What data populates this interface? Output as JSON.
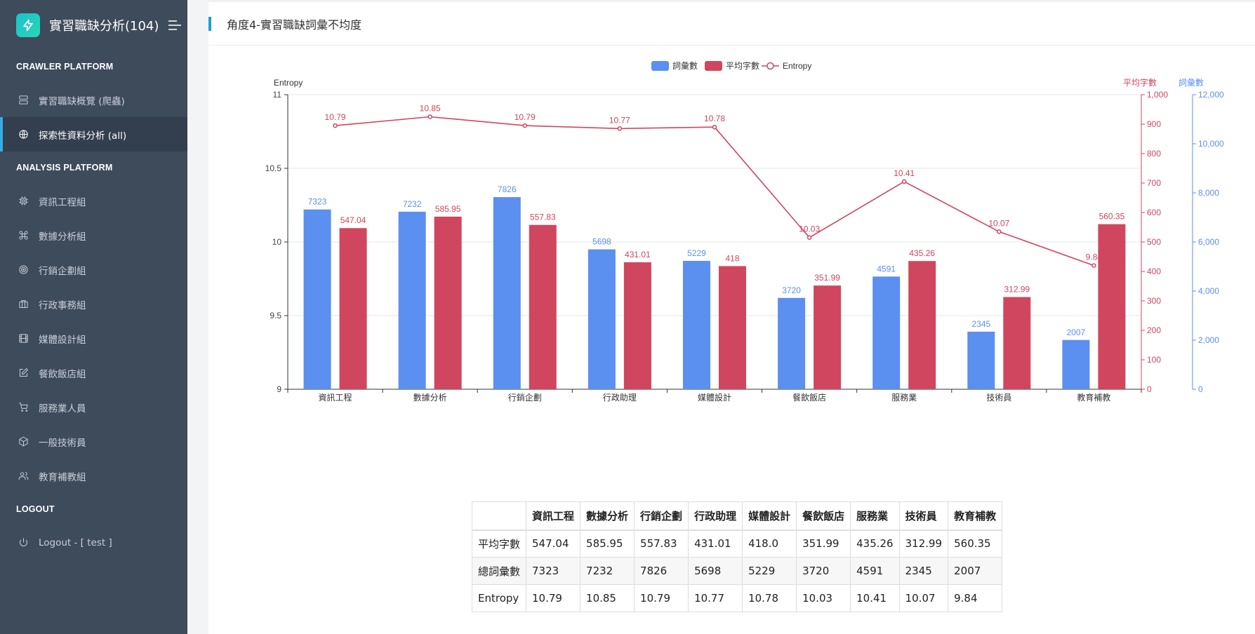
{
  "brand": {
    "title": "實習職缺分析(104)",
    "logo_icon": "bolt-icon",
    "menu_icon": "hamburger-icon"
  },
  "sidebar": {
    "sections": [
      {
        "title": "CRAWLER PLATFORM",
        "items": [
          {
            "label": "實習職缺概覽 (爬蟲)",
            "icon": "server-icon"
          },
          {
            "label": "探索性資料分析 (all)",
            "icon": "globe-icon",
            "active": true
          }
        ]
      },
      {
        "title": "ANALYSIS PLATFORM",
        "items": [
          {
            "label": "資訊工程組",
            "icon": "cpu-icon"
          },
          {
            "label": "數據分析組",
            "icon": "command-icon"
          },
          {
            "label": "行銷企劃組",
            "icon": "target-icon"
          },
          {
            "label": "行政事務組",
            "icon": "briefcase-icon"
          },
          {
            "label": "媒體設計組",
            "icon": "film-icon"
          },
          {
            "label": "餐飲飯店組",
            "icon": "edit-icon"
          },
          {
            "label": "服務業人員",
            "icon": "cart-icon"
          },
          {
            "label": "一般技術員",
            "icon": "codesandbox-icon"
          },
          {
            "label": "教育補教組",
            "icon": "users-icon"
          }
        ]
      },
      {
        "title": "LOGOUT",
        "items": [
          {
            "label": "Logout - [ test ]",
            "icon": "power-icon"
          }
        ]
      }
    ]
  },
  "page": {
    "title": "角度4-實習職缺詞彙不均度"
  },
  "colors": {
    "blue": "#5b8ff0",
    "red": "#d0465e",
    "accent": "#1e9fd8",
    "sidebar_bg": "#3e4b5b"
  },
  "chart_data": {
    "type": "bar",
    "categories": [
      "資訊工程",
      "數據分析",
      "行銷企劃",
      "行政助理",
      "媒體設計",
      "餐飲飯店",
      "服務業",
      "技術員",
      "教育補教"
    ],
    "legend": [
      "詞彙數",
      "平均字數",
      "Entropy"
    ],
    "legend_position": "top-center",
    "series": [
      {
        "name": "詞彙數",
        "type": "bar",
        "axis": "right-outer",
        "values": [
          7323,
          7232,
          7826,
          5698,
          5229,
          3720,
          4591,
          2345,
          2007
        ]
      },
      {
        "name": "平均字數",
        "type": "bar",
        "axis": "right-inner",
        "values": [
          547.04,
          585.95,
          557.83,
          431.01,
          418,
          351.99,
          435.26,
          312.99,
          560.35
        ]
      },
      {
        "name": "Entropy",
        "type": "line",
        "axis": "left",
        "values": [
          10.79,
          10.85,
          10.79,
          10.77,
          10.78,
          10.03,
          10.41,
          10.07,
          9.84
        ]
      }
    ],
    "axes": {
      "left": {
        "label": "Entropy",
        "ylim": [
          9,
          11
        ],
        "ticks": [
          "9",
          "9.5",
          "10",
          "10.5",
          "11"
        ]
      },
      "right_inner": {
        "label": "平均字數",
        "ylim": [
          0,
          1000
        ],
        "ticks": [
          "0",
          "100",
          "200",
          "300",
          "400",
          "500",
          "600",
          "700",
          "800",
          "900",
          "1,000"
        ]
      },
      "right_outer": {
        "label": "詞彙數",
        "ylim": [
          0,
          12000
        ],
        "ticks": [
          "0",
          "2,000",
          "4,000",
          "6,000",
          "8,000",
          "10,000",
          "12,000"
        ]
      }
    },
    "bar_labels": {
      "詞彙數": [
        "7323",
        "7232",
        "7826",
        "5698",
        "5229",
        "3720",
        "4591",
        "2345",
        "2007"
      ],
      "平均字數": [
        "547.04",
        "585.95",
        "557.83",
        "431.01",
        "418",
        "351.99",
        "435.26",
        "312.99",
        "560.35"
      ],
      "Entropy": [
        "10.79",
        "10.85",
        "10.79",
        "10.77",
        "10.78",
        "10.03",
        "10.41",
        "10.07",
        "9.84"
      ]
    },
    "grid": true
  },
  "table": {
    "headers": [
      "",
      "資訊工程",
      "數據分析",
      "行銷企劃",
      "行政助理",
      "媒體設計",
      "餐飲飯店",
      "服務業",
      "技術員",
      "教育補教"
    ],
    "rows": [
      [
        "平均字數",
        "547.04",
        "585.95",
        "557.83",
        "431.01",
        "418.0",
        "351.99",
        "435.26",
        "312.99",
        "560.35"
      ],
      [
        "總詞彙數",
        "7323",
        "7232",
        "7826",
        "5698",
        "5229",
        "3720",
        "4591",
        "2345",
        "2007"
      ],
      [
        "Entropy",
        "10.79",
        "10.85",
        "10.79",
        "10.77",
        "10.78",
        "10.03",
        "10.41",
        "10.07",
        "9.84"
      ]
    ]
  }
}
